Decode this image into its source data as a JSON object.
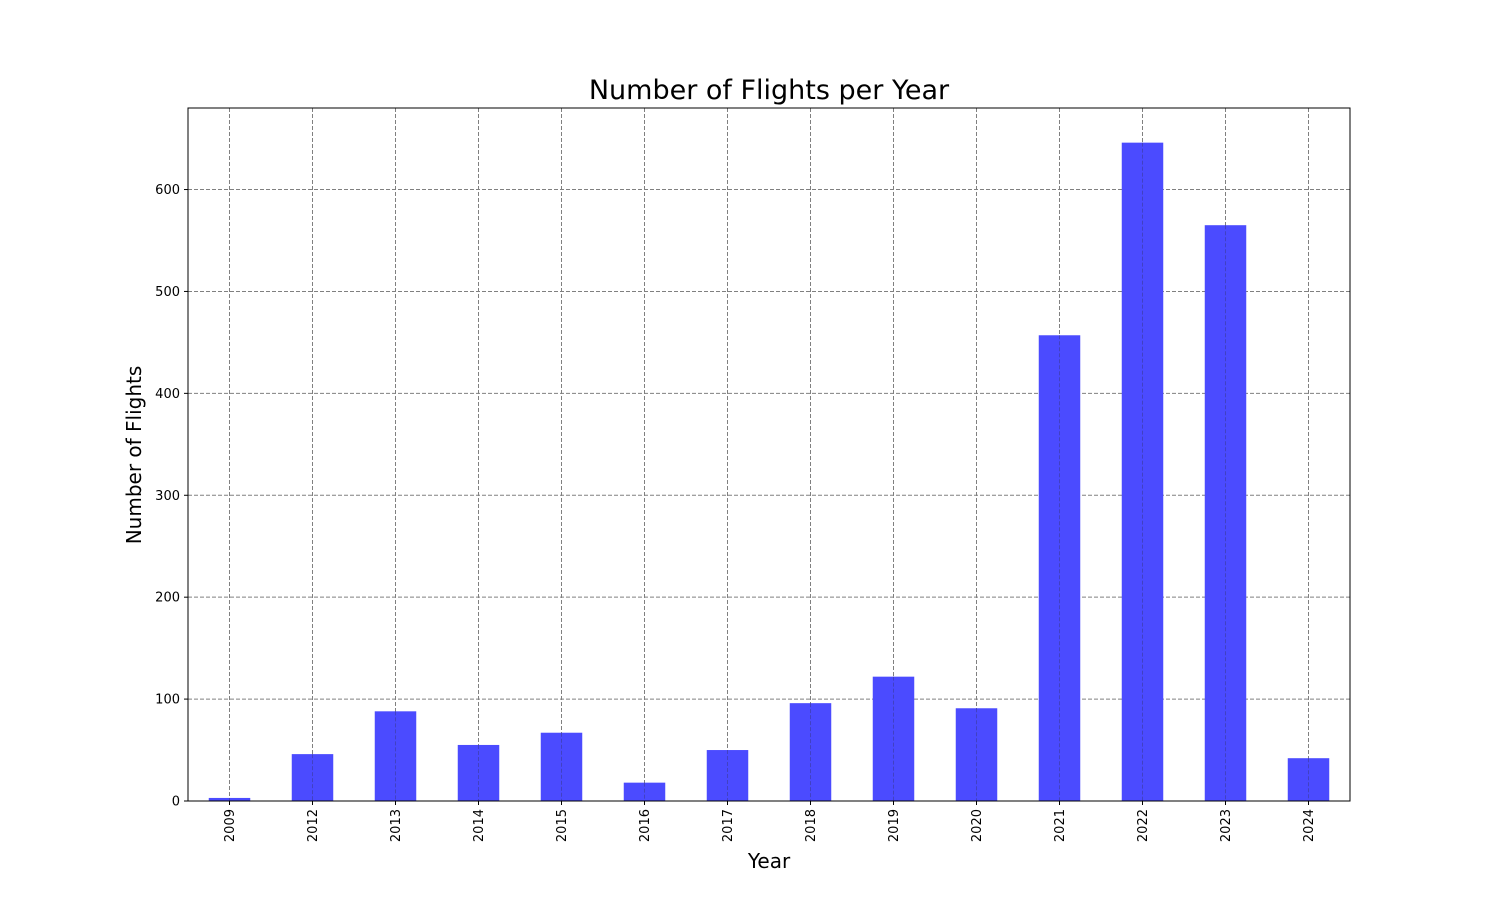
{
  "chart_data": {
    "type": "bar",
    "title": "Number of Flights per Year",
    "xlabel": "Year",
    "ylabel": "Number of Flights",
    "categories": [
      "2009",
      "2012",
      "2013",
      "2014",
      "2015",
      "2016",
      "2017",
      "2018",
      "2019",
      "2020",
      "2021",
      "2022",
      "2023",
      "2024"
    ],
    "values": [
      3,
      46,
      88,
      55,
      67,
      18,
      50,
      96,
      122,
      91,
      457,
      646,
      565,
      42
    ],
    "ylim": [
      0,
      680
    ],
    "yticks": [
      0,
      100,
      200,
      300,
      400,
      500,
      600
    ],
    "ytick_labels": [
      "0",
      "100",
      "200",
      "300",
      "400",
      "500",
      "600"
    ],
    "grid": true,
    "bar_color": "#4b4bff",
    "grid_color": "#808080"
  }
}
